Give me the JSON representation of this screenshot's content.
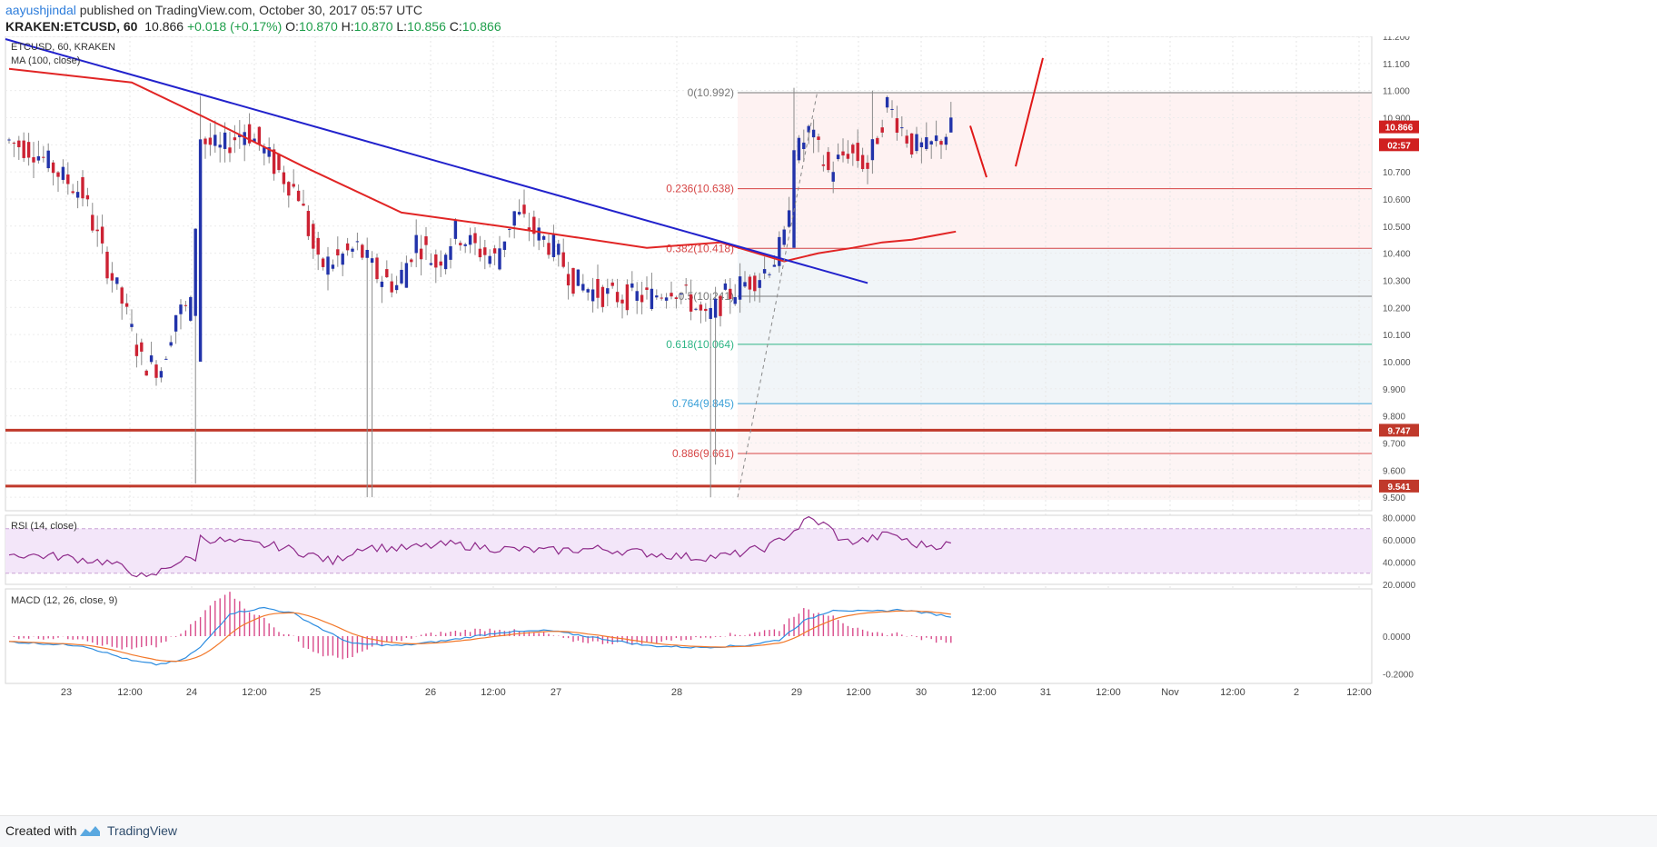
{
  "header": {
    "user": "aayushjindal",
    "published": " published on TradingView.com, October 30, 2017 05:57 UTC",
    "symbol": "KRAKEN:ETCUSD, 60",
    "last": "10.866",
    "change": "+0.018 (+0.17%)",
    "o_label": "O:",
    "o": "10.870",
    "h_label": "H:",
    "h": "10.870",
    "l_label": "L:",
    "l": "10.856",
    "c_label": "C:",
    "c": "10.866"
  },
  "footer": {
    "created": "Created with",
    "brand": "TradingView"
  },
  "colors": {
    "up": "#2233aa",
    "down": "#cc2233",
    "ma": "#e12525",
    "trendline": "#2222cc",
    "support": "#c0392b",
    "rsi": "#8e2a8a",
    "macd": "#2d8de0",
    "signal": "#f2782a"
  },
  "chart_data": [
    {
      "type": "candlestick",
      "title": "ETCUSD, 60, KRAKEN",
      "indicator": "MA (100, close)",
      "ylim": [
        9.45,
        11.2
      ],
      "y_ticks": [
        "11.200",
        "11.100",
        "11.000",
        "10.900",
        "10.800",
        "10.700",
        "10.600",
        "10.500",
        "10.400",
        "10.300",
        "10.200",
        "10.100",
        "10.000",
        "9.900",
        "9.800",
        "9.700",
        "9.600",
        "9.500"
      ],
      "x_ticks": [
        "23",
        "12:00",
        "24",
        "12:00",
        "25",
        "26",
        "12:00",
        "27",
        "28",
        "29",
        "12:00",
        "30",
        "12:00",
        "31",
        "12:00",
        "Nov",
        "12:00",
        "2",
        "12:00"
      ],
      "price_labels": [
        {
          "text": "10.866",
          "value": 10.866
        },
        {
          "text": "02:57",
          "value": 10.8
        },
        {
          "text": "9.747",
          "value": 9.747
        },
        {
          "text": "9.541",
          "value": 9.541
        }
      ],
      "fib_levels": [
        {
          "label": "0(10.992)",
          "value": 10.992
        },
        {
          "label": "0.236(10.638)",
          "value": 10.638
        },
        {
          "label": "0.382(10.418)",
          "value": 10.418
        },
        {
          "label": "0.5(10.241)",
          "value": 10.241
        },
        {
          "label": "0.618(10.064)",
          "value": 10.064
        },
        {
          "label": "0.764(9.845)",
          "value": 9.845
        },
        {
          "label": "0.886(9.661)",
          "value": 9.661
        }
      ],
      "support_levels": [
        9.747,
        9.541
      ],
      "trendline": {
        "from": [
          0,
          11.19
        ],
        "to": [
          156.5,
          10.29
        ]
      }
    },
    {
      "type": "line",
      "title": "RSI (14, close)",
      "ylim": [
        20,
        82
      ],
      "y_ticks": [
        "80.0000",
        "60.0000",
        "40.0000",
        "20.0000"
      ],
      "bands": [
        30,
        70
      ]
    },
    {
      "type": "line",
      "title": "MACD (12, 26, close, 9)",
      "ylim": [
        -0.25,
        0.25
      ],
      "y_ticks": [
        "0.0000",
        "-0.2000"
      ]
    }
  ]
}
